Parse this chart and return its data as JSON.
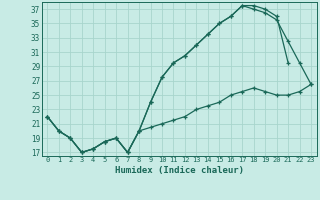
{
  "xlabel": "Humidex (Indice chaleur)",
  "bg_color": "#c8ebe5",
  "grid_color": "#a8d5cc",
  "line_color": "#1a6858",
  "xlim": [
    -0.5,
    23.5
  ],
  "ylim": [
    16.5,
    38.0
  ],
  "xticks": [
    0,
    1,
    2,
    3,
    4,
    5,
    6,
    7,
    8,
    9,
    10,
    11,
    12,
    13,
    14,
    15,
    16,
    17,
    18,
    19,
    20,
    21,
    22,
    23
  ],
  "yticks": [
    17,
    19,
    21,
    23,
    25,
    27,
    29,
    31,
    33,
    35,
    37
  ],
  "line1_x": [
    0,
    1,
    2,
    3,
    4,
    5,
    6,
    7,
    8,
    9,
    10,
    11,
    12,
    13,
    14,
    15,
    16,
    17,
    18,
    19,
    20,
    21
  ],
  "line1_y": [
    22,
    20,
    19,
    17,
    17.5,
    18.5,
    19,
    17,
    20,
    24,
    27.5,
    29.5,
    30.5,
    32,
    33.5,
    35,
    36,
    37.5,
    37.5,
    37,
    36,
    29.5
  ],
  "line2_x": [
    0,
    1,
    2,
    3,
    4,
    5,
    6,
    7,
    8,
    9,
    10,
    11,
    12,
    13,
    14,
    15,
    16,
    17,
    18,
    19,
    20,
    21,
    22,
    23
  ],
  "line2_y": [
    22,
    20,
    19,
    17,
    17.5,
    18.5,
    19,
    17,
    20,
    24,
    27.5,
    29.5,
    30.5,
    32,
    33.5,
    35,
    36,
    37.5,
    37,
    36.5,
    35.5,
    32.5,
    29.5,
    26.5
  ],
  "line3_x": [
    0,
    1,
    2,
    3,
    4,
    5,
    6,
    7,
    8,
    9,
    10,
    11,
    12,
    13,
    14,
    15,
    16,
    17,
    18,
    19,
    20,
    21,
    22,
    23
  ],
  "line3_y": [
    22,
    20,
    19,
    17,
    17.5,
    18.5,
    19,
    17,
    20,
    20.5,
    21,
    21.5,
    22,
    23,
    23.5,
    24,
    25,
    25.5,
    26,
    25.5,
    25,
    25,
    25.5,
    26.5
  ]
}
